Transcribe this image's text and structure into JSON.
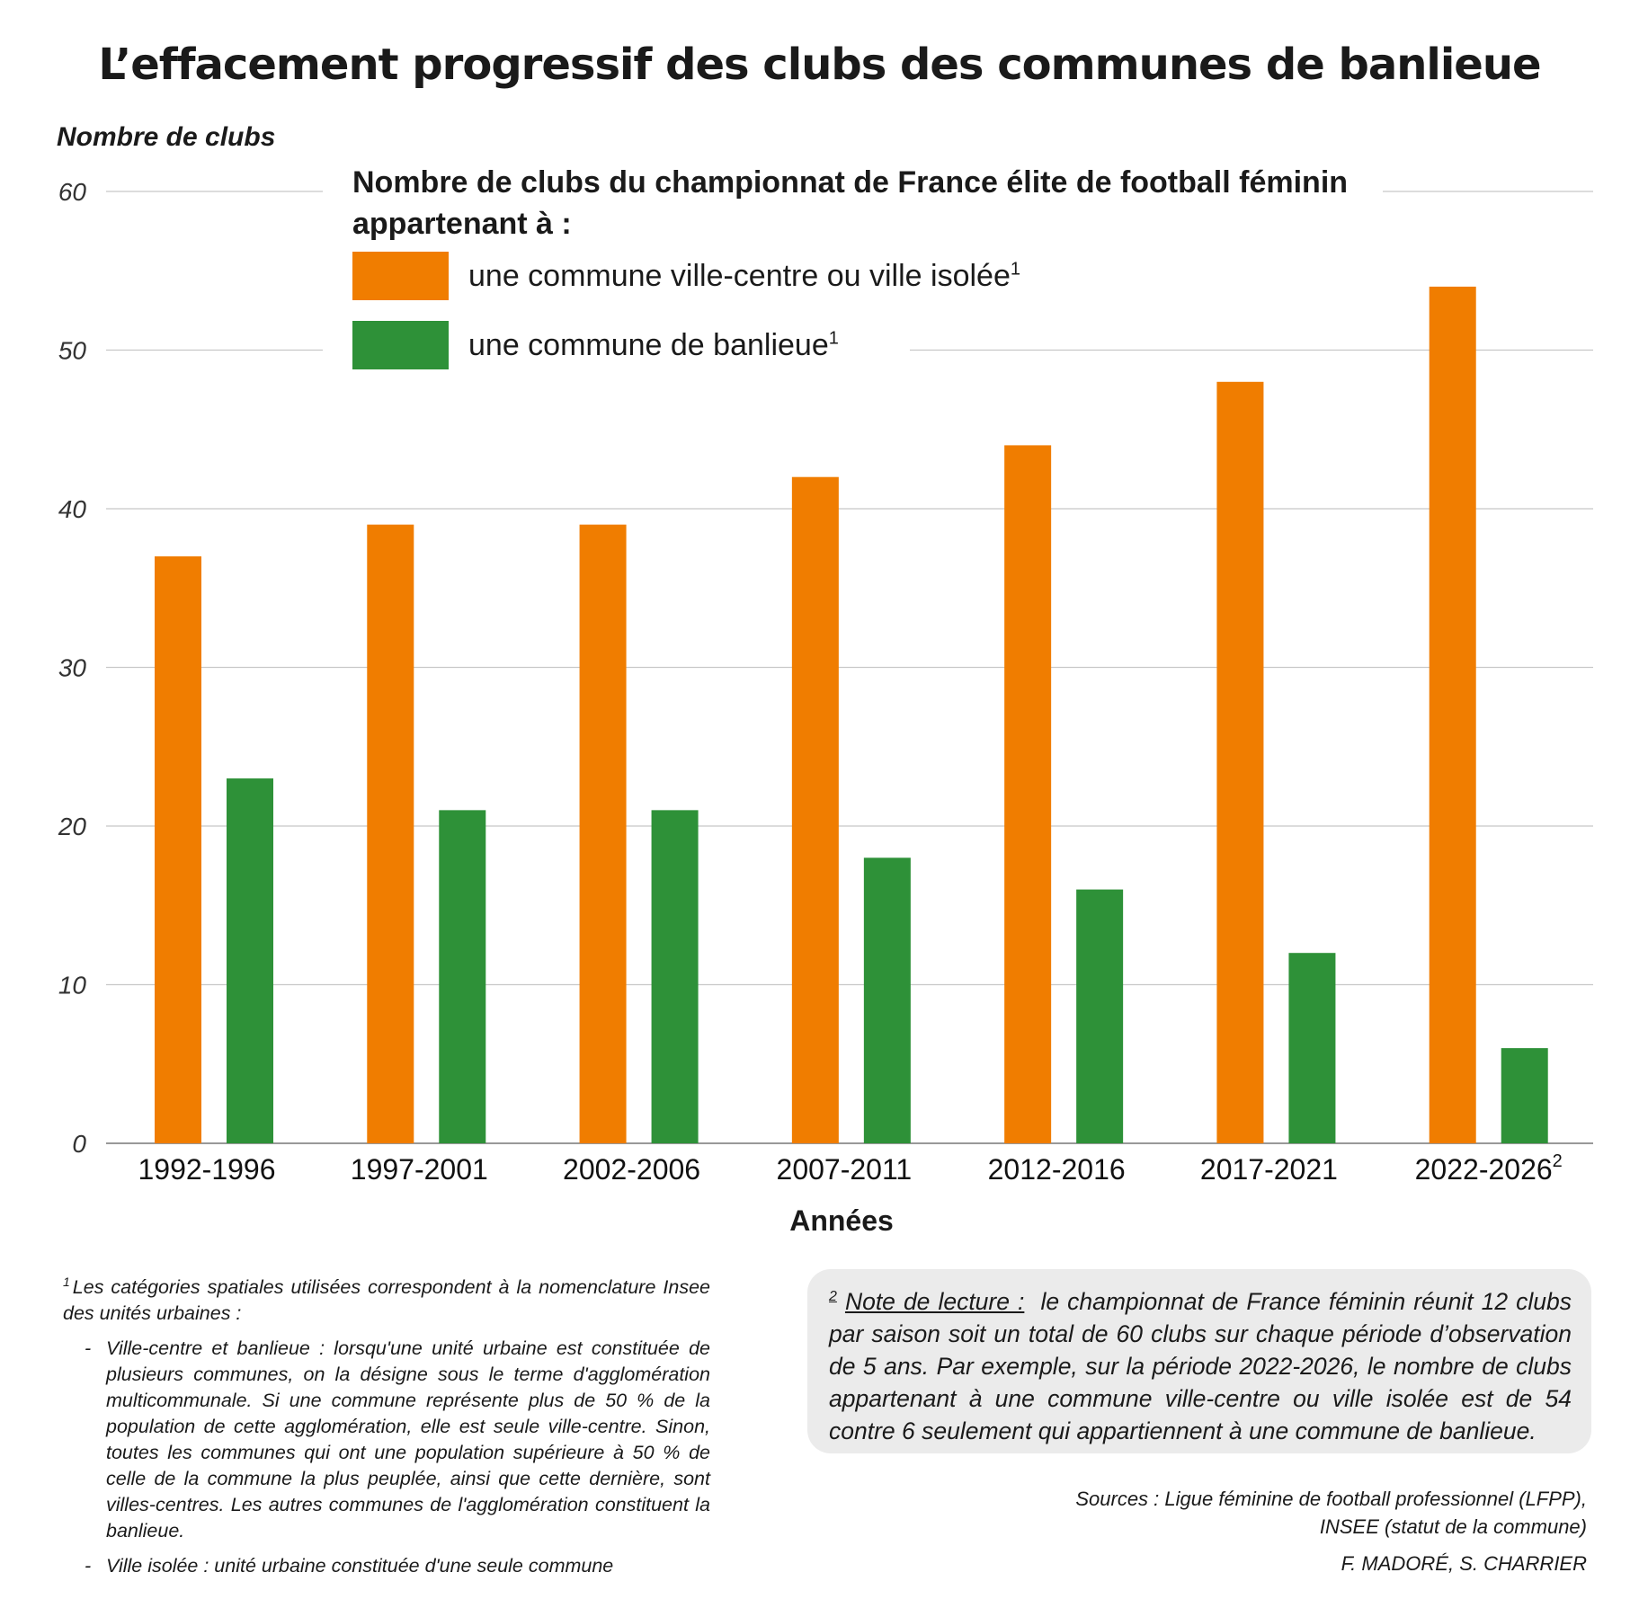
{
  "title": "L’effacement progressif des clubs des communes de banlieue",
  "colors": {
    "orange": "#f07d00",
    "green": "#2e9138",
    "grid": "#c8c8c8",
    "axis": "#999999",
    "note_bg": "#ebebeb"
  },
  "legend": {
    "title": "Nombre de clubs du championnat de France élite de football féminin appartenant à :",
    "items": [
      {
        "label": "une commune ville-centre ou ville isolée",
        "sup": "1",
        "color": "#f07d00"
      },
      {
        "label": "une commune de banlieue",
        "sup": "1",
        "color": "#2e9138"
      }
    ]
  },
  "chart_data": {
    "type": "bar",
    "ylabel": "Nombre de clubs",
    "xlabel": "Années",
    "ylim": [
      0,
      60
    ],
    "yticks": [
      0,
      10,
      20,
      30,
      40,
      50,
      60
    ],
    "grid": true,
    "categories": [
      "1992-1996",
      "1997-2001",
      "2002-2006",
      "2007-2011",
      "2012-2016",
      "2017-2021",
      "2022-2026"
    ],
    "category_sups": [
      "",
      "",
      "",
      "",
      "",
      "",
      "2"
    ],
    "series": [
      {
        "name": "une commune ville-centre ou ville isolée",
        "color": "#f07d00",
        "values": [
          37,
          39,
          39,
          42,
          44,
          48,
          54
        ]
      },
      {
        "name": "une commune de banlieue",
        "color": "#2e9138",
        "values": [
          23,
          21,
          21,
          18,
          16,
          12,
          6
        ]
      }
    ]
  },
  "footnote": {
    "sup": "1",
    "intro": "Les catégories spatiales utilisées correspondent à la nomenclature Insee des unités urbaines :",
    "items": [
      "Ville-centre et banlieue : lorsqu'une unité urbaine est constituée de plusieurs communes, on la désigne sous le terme d'agglomération multicommunale. Si une commune représente plus de 50 % de la population de cette agglomération, elle est seule ville-centre. Sinon, toutes les communes qui ont une population supérieure à 50 % de celle de la commune la plus peuplée, ainsi que cette dernière, sont villes-centres. Les autres communes de l'agglomération constituent la banlieue.",
      "Ville isolée : unité urbaine constituée d'une seule commune"
    ]
  },
  "note": {
    "sup": "2",
    "heading": "Note de lecture :",
    "text": "le championnat de France féminin réunit 12 clubs par saison soit un total de 60 clubs sur chaque période d’observation de 5 ans. Par exemple, sur la période 2022-2026, le nombre de clubs appartenant à une commune ville-centre ou ville isolée est de 54 contre 6 seulement qui appartiennent à une commune de banlieue."
  },
  "sources": {
    "line1": "Sources : Ligue féminine de football professionnel (LFPP),",
    "line2": "INSEE (statut de la commune)"
  },
  "authors": "F. MADORÉ, S. CHARRIER"
}
